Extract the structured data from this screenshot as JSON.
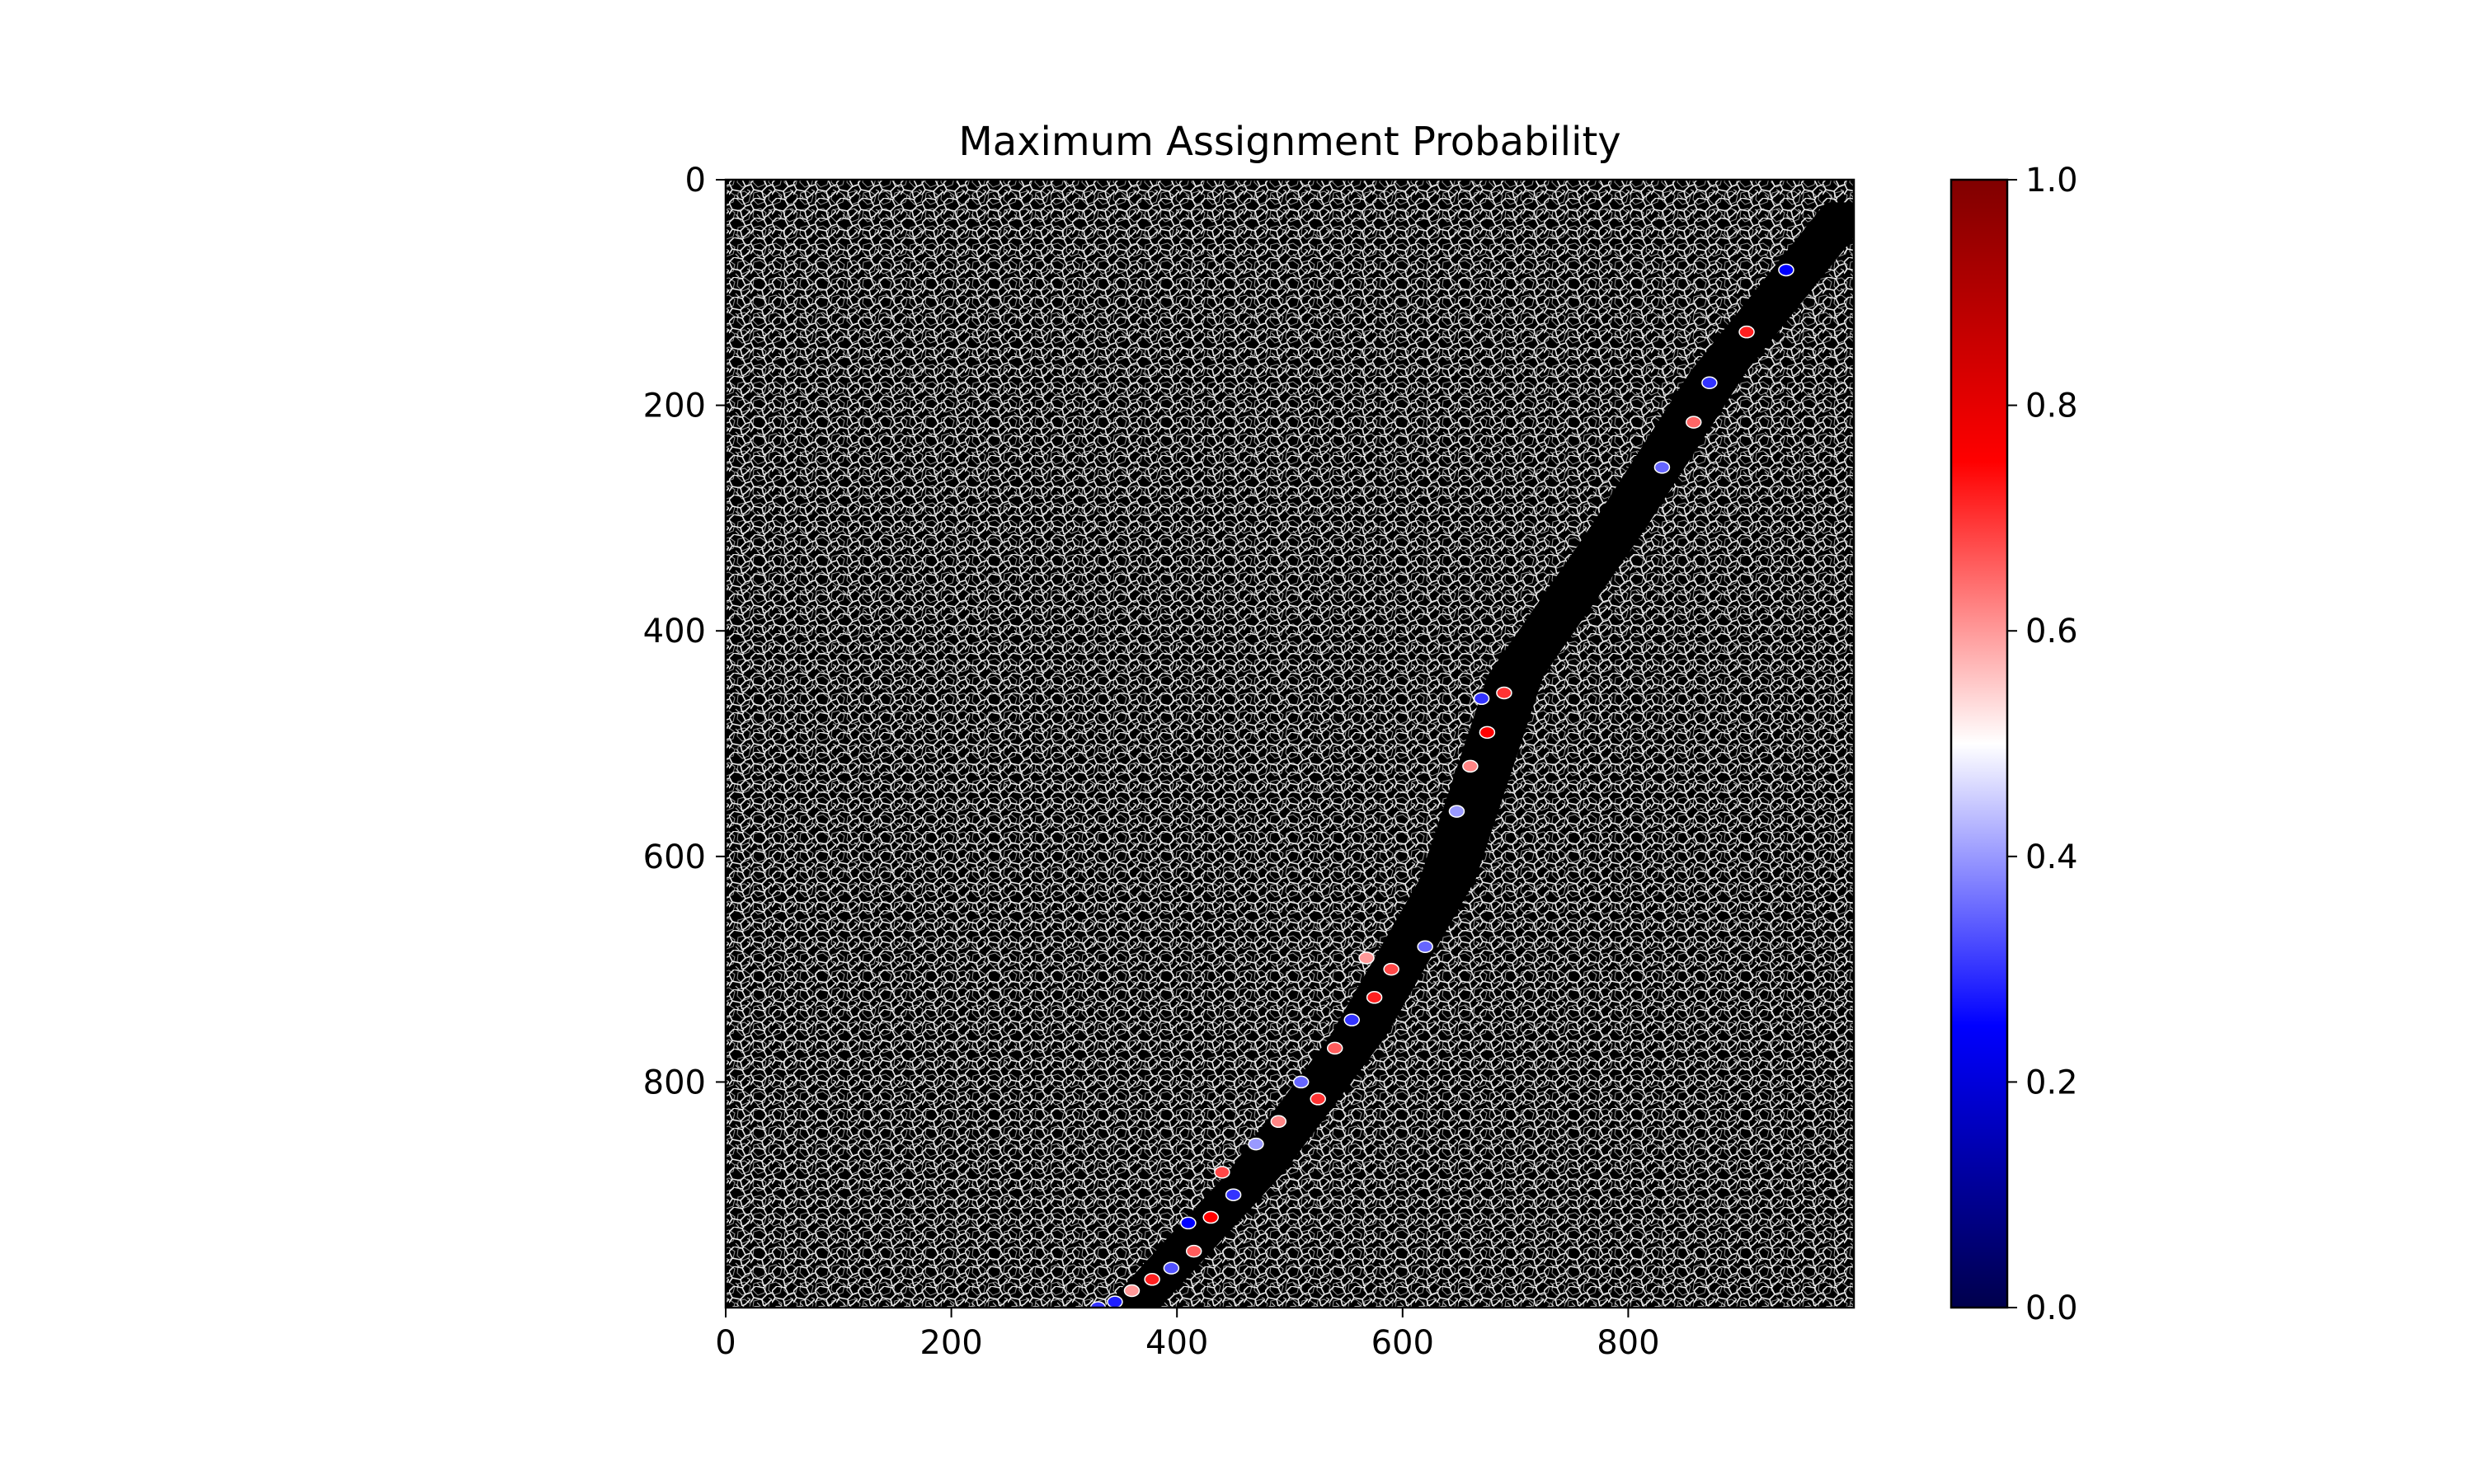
{
  "chart_data": {
    "type": "heatmap",
    "title": "Maximum Assignment Probability",
    "xlabel": "",
    "ylabel": "",
    "xlim": [
      0,
      1000
    ],
    "ylim": [
      1000,
      0
    ],
    "x_ticks": [
      0,
      200,
      400,
      600,
      800
    ],
    "y_ticks": [
      0,
      200,
      400,
      600,
      800
    ],
    "grid": false,
    "background_image": "grayscale cell-segmentation mosaic (white cell outlines on black)",
    "colorbar": {
      "colormap": "seismic",
      "range": [
        0.0,
        1.0
      ],
      "ticks": [
        "0.0",
        "0.2",
        "0.4",
        "0.6",
        "0.8",
        "1.0"
      ],
      "placement": "right"
    },
    "band": {
      "description": "dark diagonal strip of low-density region containing colored cells",
      "centerline": [
        [
          1000,
          20
        ],
        [
          880,
          170
        ],
        [
          790,
          310
        ],
        [
          700,
          440
        ],
        [
          640,
          620
        ],
        [
          560,
          760
        ],
        [
          470,
          880
        ],
        [
          360,
          1000
        ]
      ]
    },
    "cells": [
      {
        "x": 940,
        "y": 80,
        "p": 0.25
      },
      {
        "x": 905,
        "y": 135,
        "p": 0.72
      },
      {
        "x": 872,
        "y": 180,
        "p": 0.3
      },
      {
        "x": 858,
        "y": 215,
        "p": 0.65
      },
      {
        "x": 830,
        "y": 255,
        "p": 0.35
      },
      {
        "x": 690,
        "y": 455,
        "p": 0.7
      },
      {
        "x": 670,
        "y": 460,
        "p": 0.3
      },
      {
        "x": 675,
        "y": 490,
        "p": 0.75
      },
      {
        "x": 660,
        "y": 520,
        "p": 0.62
      },
      {
        "x": 648,
        "y": 560,
        "p": 0.4
      },
      {
        "x": 620,
        "y": 680,
        "p": 0.35
      },
      {
        "x": 590,
        "y": 700,
        "p": 0.68
      },
      {
        "x": 568,
        "y": 690,
        "p": 0.6
      },
      {
        "x": 575,
        "y": 725,
        "p": 0.72
      },
      {
        "x": 555,
        "y": 745,
        "p": 0.3
      },
      {
        "x": 540,
        "y": 770,
        "p": 0.66
      },
      {
        "x": 510,
        "y": 800,
        "p": 0.35
      },
      {
        "x": 525,
        "y": 815,
        "p": 0.7
      },
      {
        "x": 490,
        "y": 835,
        "p": 0.62
      },
      {
        "x": 470,
        "y": 855,
        "p": 0.4
      },
      {
        "x": 440,
        "y": 880,
        "p": 0.68
      },
      {
        "x": 450,
        "y": 900,
        "p": 0.3
      },
      {
        "x": 430,
        "y": 920,
        "p": 0.75
      },
      {
        "x": 410,
        "y": 925,
        "p": 0.25
      },
      {
        "x": 415,
        "y": 950,
        "p": 0.66
      },
      {
        "x": 395,
        "y": 965,
        "p": 0.33
      },
      {
        "x": 378,
        "y": 975,
        "p": 0.72
      },
      {
        "x": 360,
        "y": 985,
        "p": 0.6
      },
      {
        "x": 345,
        "y": 995,
        "p": 0.28
      },
      {
        "x": 330,
        "y": 1000,
        "p": 0.3
      }
    ]
  }
}
